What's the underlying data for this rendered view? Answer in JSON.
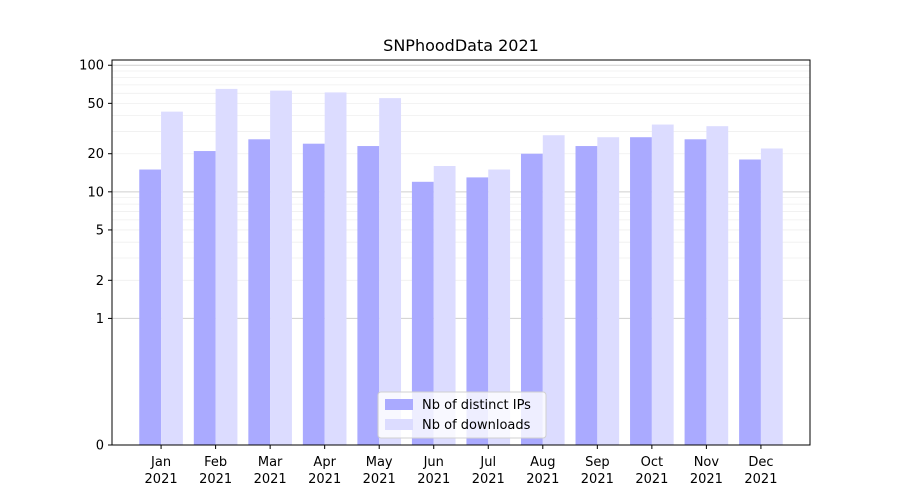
{
  "chart_data": {
    "type": "bar",
    "title": "SNPhoodData 2021",
    "xlabel": "",
    "ylabel": "",
    "yscale": "symlog",
    "ylim": [
      0,
      110
    ],
    "yticks": [
      {
        "value": 0,
        "label": "0"
      },
      {
        "value": 1,
        "label": "1"
      },
      {
        "value": 2,
        "label": "2"
      },
      {
        "value": 5,
        "label": "5"
      },
      {
        "value": 10,
        "label": "10"
      },
      {
        "value": 20,
        "label": "20"
      },
      {
        "value": 50,
        "label": "50"
      },
      {
        "value": 100,
        "label": "100"
      }
    ],
    "categories": [
      {
        "month": "Jan",
        "year": "2021"
      },
      {
        "month": "Feb",
        "year": "2021"
      },
      {
        "month": "Mar",
        "year": "2021"
      },
      {
        "month": "Apr",
        "year": "2021"
      },
      {
        "month": "May",
        "year": "2021"
      },
      {
        "month": "Jun",
        "year": "2021"
      },
      {
        "month": "Jul",
        "year": "2021"
      },
      {
        "month": "Aug",
        "year": "2021"
      },
      {
        "month": "Sep",
        "year": "2021"
      },
      {
        "month": "Oct",
        "year": "2021"
      },
      {
        "month": "Nov",
        "year": "2021"
      },
      {
        "month": "Dec",
        "year": "2021"
      }
    ],
    "series": [
      {
        "name": "Nb of distinct IPs",
        "color": "#aaaaff",
        "values": [
          15,
          21,
          26,
          24,
          23,
          12,
          13,
          20,
          23,
          27,
          26,
          18
        ]
      },
      {
        "name": "Nb of downloads",
        "color": "#dcdcff",
        "values": [
          43,
          65,
          63,
          61,
          55,
          16,
          15,
          28,
          27,
          34,
          33,
          22
        ]
      }
    ],
    "grid": "y-major-and-minor",
    "legend_position": "bottom-center"
  }
}
